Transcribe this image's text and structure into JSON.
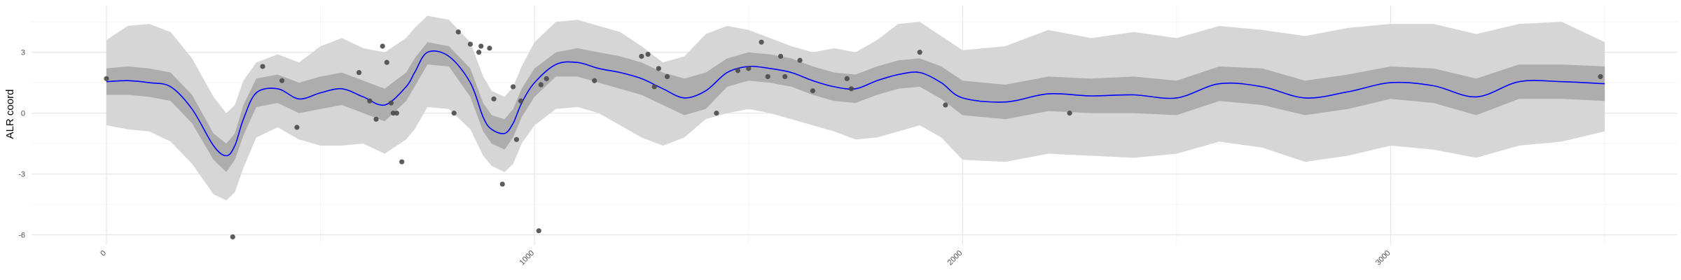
{
  "chart_data": {
    "type": "line",
    "title": "",
    "xlabel": "",
    "ylabel": "ALR coord",
    "xlim": [
      -175,
      3670
    ],
    "ylim": [
      -6.5,
      5.3
    ],
    "x_ticks": [
      0,
      1000,
      2000,
      3000
    ],
    "x_tick_labels": [
      "0",
      "1000",
      "2000",
      "3000"
    ],
    "y_ticks": [
      -6,
      -3,
      0,
      3
    ],
    "y_tick_labels": [
      "-6",
      "-3",
      "0",
      "3"
    ],
    "grid": true,
    "legend": "none",
    "colors": {
      "mean_line": "#0000ff",
      "inner_band": "#adadad",
      "outer_band": "#d6d6d6",
      "points": "#4a4a4a",
      "grid": "#e6e6e6"
    },
    "series": [
      {
        "kind": "mean",
        "x": [
          0,
          50,
          100,
          150,
          200,
          250,
          280,
          300,
          320,
          350,
          400,
          450,
          500,
          550,
          600,
          650,
          700,
          720,
          750,
          800,
          850,
          880,
          900,
          930,
          950,
          970,
          1000,
          1050,
          1100,
          1150,
          1200,
          1250,
          1300,
          1350,
          1400,
          1450,
          1500,
          1550,
          1600,
          1650,
          1700,
          1750,
          1800,
          1850,
          1900,
          1950,
          2000,
          2100,
          2200,
          2300,
          2400,
          2500,
          2600,
          2700,
          2800,
          2900,
          3000,
          3100,
          3200,
          3300,
          3400,
          3500
        ],
        "y": [
          1.55,
          1.6,
          1.5,
          1.3,
          0.2,
          -1.6,
          -2.1,
          -1.6,
          -0.3,
          1.0,
          1.2,
          0.7,
          1.0,
          1.2,
          0.8,
          0.4,
          1.3,
          2.0,
          3.0,
          2.8,
          1.5,
          -0.2,
          -0.8,
          -1.0,
          -0.5,
          0.5,
          1.5,
          2.4,
          2.5,
          2.2,
          2.0,
          1.7,
          1.2,
          0.75,
          1.1,
          2.0,
          2.3,
          2.2,
          2.0,
          1.6,
          1.3,
          1.2,
          1.6,
          1.9,
          2.0,
          1.5,
          0.75,
          0.55,
          0.95,
          0.85,
          0.9,
          0.75,
          1.45,
          1.3,
          0.75,
          1.05,
          1.5,
          1.35,
          0.8,
          1.55,
          1.55,
          1.45
        ]
      },
      {
        "kind": "inner_band_upper",
        "x": [
          0,
          50,
          100,
          150,
          200,
          250,
          280,
          300,
          320,
          350,
          400,
          450,
          500,
          550,
          600,
          650,
          700,
          720,
          750,
          800,
          850,
          880,
          900,
          930,
          950,
          970,
          1000,
          1050,
          1100,
          1150,
          1200,
          1250,
          1300,
          1350,
          1400,
          1450,
          1500,
          1550,
          1600,
          1650,
          1700,
          1750,
          1800,
          1850,
          1900,
          1950,
          2000,
          2100,
          2200,
          2300,
          2400,
          2500,
          2600,
          2700,
          2800,
          2900,
          3000,
          3100,
          3200,
          3300,
          3400,
          3500
        ],
        "y": [
          2.2,
          2.3,
          2.2,
          2.0,
          0.9,
          -1.0,
          -1.5,
          -1.0,
          0.4,
          1.7,
          1.9,
          1.5,
          1.8,
          2.0,
          1.6,
          1.2,
          2.0,
          2.7,
          3.5,
          3.3,
          2.2,
          0.5,
          -0.1,
          -0.3,
          0.2,
          1.2,
          2.2,
          3.0,
          3.2,
          3.0,
          2.8,
          2.5,
          2.0,
          1.7,
          2.0,
          2.7,
          3.0,
          2.9,
          2.7,
          2.3,
          2.0,
          1.9,
          2.3,
          2.6,
          2.7,
          2.3,
          1.6,
          1.4,
          1.8,
          1.7,
          1.8,
          1.6,
          2.3,
          2.2,
          1.6,
          1.9,
          2.3,
          2.2,
          1.7,
          2.4,
          2.4,
          2.3
        ]
      },
      {
        "kind": "inner_band_lower",
        "x": [
          0,
          50,
          100,
          150,
          200,
          250,
          280,
          300,
          320,
          350,
          400,
          450,
          500,
          550,
          600,
          650,
          700,
          720,
          750,
          800,
          850,
          880,
          900,
          930,
          950,
          970,
          1000,
          1050,
          1100,
          1150,
          1200,
          1250,
          1300,
          1350,
          1400,
          1450,
          1500,
          1550,
          1600,
          1650,
          1700,
          1750,
          1800,
          1850,
          1900,
          1950,
          2000,
          2100,
          2200,
          2300,
          2400,
          2500,
          2600,
          2700,
          2800,
          2900,
          3000,
          3100,
          3200,
          3300,
          3400,
          3500
        ],
        "y": [
          0.9,
          0.9,
          0.8,
          0.6,
          -0.5,
          -2.3,
          -2.9,
          -2.3,
          -1.1,
          0.3,
          0.5,
          0.0,
          0.2,
          0.4,
          0.0,
          -0.4,
          0.6,
          1.3,
          2.4,
          2.3,
          0.8,
          -0.9,
          -1.5,
          -1.8,
          -1.2,
          -0.2,
          0.8,
          1.8,
          1.8,
          1.5,
          1.2,
          0.9,
          0.4,
          -0.1,
          0.2,
          1.3,
          1.6,
          1.5,
          1.3,
          0.9,
          0.6,
          0.5,
          0.9,
          1.2,
          1.3,
          0.7,
          -0.1,
          -0.3,
          0.1,
          0.0,
          0.0,
          -0.1,
          0.6,
          0.4,
          -0.1,
          0.2,
          0.7,
          0.5,
          -0.1,
          0.7,
          0.7,
          0.6
        ]
      },
      {
        "kind": "outer_band_upper",
        "x": [
          0,
          50,
          100,
          150,
          200,
          250,
          280,
          300,
          320,
          350,
          400,
          450,
          500,
          550,
          600,
          650,
          700,
          720,
          750,
          800,
          850,
          880,
          900,
          930,
          950,
          970,
          1000,
          1050,
          1100,
          1150,
          1200,
          1250,
          1300,
          1350,
          1400,
          1450,
          1500,
          1550,
          1600,
          1650,
          1700,
          1750,
          1800,
          1850,
          1900,
          1950,
          2000,
          2100,
          2200,
          2300,
          2400,
          2500,
          2600,
          2700,
          2800,
          2900,
          3000,
          3100,
          3200,
          3300,
          3400,
          3500
        ],
        "y": [
          3.6,
          4.3,
          4.4,
          4.0,
          2.7,
          0.8,
          0.0,
          0.4,
          1.6,
          2.5,
          2.9,
          2.5,
          3.3,
          3.7,
          3.2,
          3.0,
          3.7,
          4.2,
          4.8,
          4.6,
          3.5,
          1.8,
          1.1,
          0.8,
          1.3,
          2.3,
          3.5,
          4.5,
          4.6,
          4.3,
          4.0,
          3.3,
          2.5,
          2.8,
          3.9,
          4.3,
          4.1,
          3.7,
          3.3,
          3.0,
          3.2,
          3.0,
          3.6,
          4.4,
          4.5,
          3.8,
          3.1,
          3.3,
          4.1,
          3.7,
          4.0,
          3.7,
          4.3,
          4.1,
          3.8,
          4.2,
          4.4,
          4.4,
          3.9,
          4.4,
          4.5,
          3.5
        ]
      },
      {
        "kind": "outer_band_lower",
        "x": [
          0,
          50,
          100,
          150,
          200,
          250,
          280,
          300,
          320,
          350,
          400,
          450,
          500,
          550,
          600,
          650,
          700,
          720,
          750,
          800,
          850,
          880,
          900,
          930,
          950,
          970,
          1000,
          1050,
          1100,
          1150,
          1200,
          1250,
          1300,
          1350,
          1400,
          1450,
          1500,
          1550,
          1600,
          1650,
          1700,
          1750,
          1800,
          1850,
          1900,
          1950,
          2000,
          2100,
          2200,
          2300,
          2400,
          2500,
          2600,
          2700,
          2800,
          2900,
          3000,
          3100,
          3200,
          3300,
          3400,
          3500
        ],
        "y": [
          -0.6,
          -0.8,
          -0.9,
          -1.4,
          -2.5,
          -4.0,
          -4.3,
          -3.9,
          -2.7,
          -1.2,
          -0.7,
          -1.3,
          -1.6,
          -1.6,
          -1.5,
          -2.0,
          -1.3,
          -0.8,
          0.3,
          0.2,
          -0.8,
          -2.1,
          -2.6,
          -2.9,
          -2.5,
          -1.5,
          -0.6,
          0.2,
          0.3,
          0.0,
          -0.6,
          -1.2,
          -1.6,
          -1.2,
          -0.3,
          0.0,
          0.2,
          0.0,
          -0.3,
          -0.6,
          -0.9,
          -1.3,
          -1.2,
          -0.9,
          -0.6,
          -1.2,
          -2.3,
          -2.4,
          -2.0,
          -2.1,
          -2.2,
          -2.0,
          -1.4,
          -1.7,
          -2.4,
          -2.1,
          -1.6,
          -1.8,
          -2.2,
          -1.6,
          -1.4,
          -0.9
        ]
      },
      {
        "kind": "points",
        "x": [
          0,
          295,
          365,
          410,
          445,
          590,
          615,
          630,
          645,
          655,
          665,
          670,
          678,
          690,
          812,
          822,
          850,
          870,
          875,
          895,
          905,
          925,
          950,
          958,
          968,
          1010,
          1015,
          1028,
          1140,
          1250,
          1265,
          1280,
          1290,
          1310,
          1425,
          1475,
          1500,
          1530,
          1545,
          1575,
          1585,
          1620,
          1650,
          1730,
          1740,
          1900,
          1960,
          2250,
          3490
        ],
        "y": [
          1.7,
          -6.1,
          2.3,
          1.6,
          -0.7,
          2.0,
          0.6,
          -0.3,
          3.3,
          2.5,
          0.5,
          0.0,
          0.0,
          -2.4,
          0.0,
          4.0,
          3.4,
          3.0,
          3.3,
          3.2,
          0.7,
          -3.5,
          1.3,
          -1.3,
          0.6,
          -5.8,
          1.4,
          1.7,
          1.6,
          2.8,
          2.9,
          1.3,
          2.2,
          1.8,
          0.0,
          2.1,
          2.2,
          3.5,
          1.8,
          2.8,
          1.8,
          2.6,
          1.1,
          1.7,
          1.2,
          3.0,
          0.4,
          0.0,
          1.8
        ]
      }
    ]
  }
}
